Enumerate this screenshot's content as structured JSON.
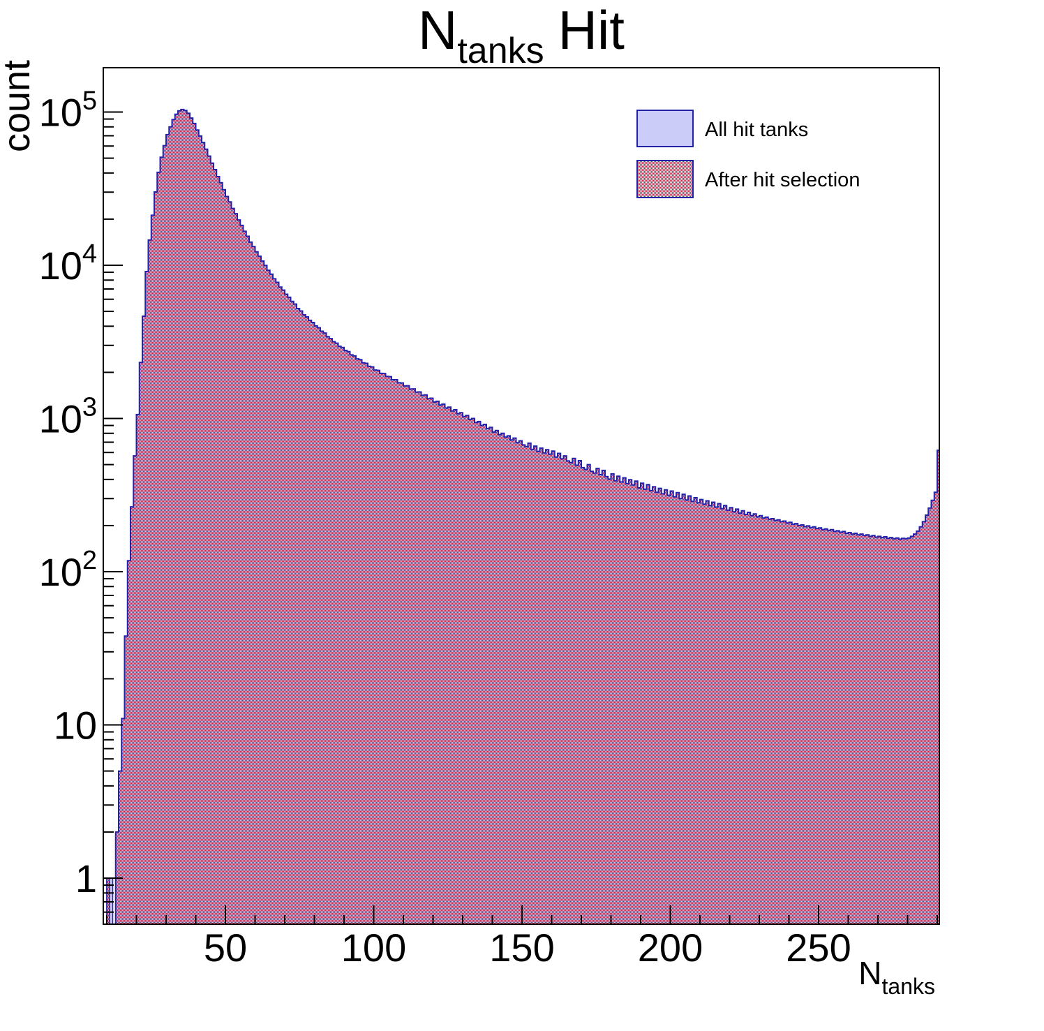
{
  "title": {
    "main": "N",
    "sub": "tanks",
    "rest": "Hit"
  },
  "axes": {
    "y_label": "count",
    "x_label_main": "N",
    "x_label_sub": "tanks"
  },
  "legend": {
    "entries": [
      {
        "label": "All hit tanks",
        "swatch": "lavender-solid"
      },
      {
        "label": "After hit selection",
        "swatch": "red-checker"
      }
    ]
  },
  "colors": {
    "outline_blue": "#2222aa",
    "lavender_fill": "#ccccf9",
    "checker_red": "#c5203f",
    "frame_black": "#000000"
  },
  "chart_data": {
    "type": "bar",
    "title": "N_tanks Hit",
    "xlabel": "N_tanks",
    "ylabel": "count",
    "y_scale": "log",
    "x_range": [
      8.8,
      291
    ],
    "y_range": [
      0.5,
      195000
    ],
    "grid": false,
    "legend_position": "top-right",
    "x_ticks_major": [
      50,
      100,
      150,
      200,
      250
    ],
    "x_ticks_minor_step": 10,
    "y_ticks_major": [
      1,
      10,
      100,
      1000,
      10000,
      100000
    ],
    "y_tick_labels": [
      {
        "value": 1,
        "base": "1",
        "exp": ""
      },
      {
        "value": 10,
        "base": "10",
        "exp": ""
      },
      {
        "value": 100,
        "base": "10",
        "exp": "2"
      },
      {
        "value": 1000,
        "base": "10",
        "exp": "3"
      },
      {
        "value": 10000,
        "base": "10",
        "exp": "4"
      },
      {
        "value": 100000,
        "base": "10",
        "exp": "5"
      }
    ],
    "bin_width": 1,
    "first_bin": 13,
    "counts": [
      2,
      5,
      11,
      38,
      118,
      265,
      570,
      1060,
      2320,
      4650,
      9100,
      14600,
      21200,
      30100,
      40400,
      50700,
      60400,
      71200,
      80100,
      89400,
      96800,
      101900,
      103800,
      102400,
      98100,
      91400,
      84200,
      76400,
      69700,
      63300,
      57200,
      51600,
      46400,
      42100,
      37900,
      34600,
      31100,
      28100,
      25900,
      23500,
      21700,
      19750,
      18200,
      16650,
      15450,
      14150,
      13250,
      12250,
      11450,
      10650,
      9980,
      9270,
      8740,
      8160,
      7730,
      7210,
      6880,
      6470,
      6180,
      5810,
      5580,
      5220,
      5030,
      4750,
      4600,
      4370,
      4230,
      4020,
      3910,
      3710,
      3610,
      3420,
      3320,
      3170,
      3100,
      2960,
      2910,
      2780,
      2730,
      2600,
      2560,
      2450,
      2420,
      2310,
      2290,
      2190,
      2170,
      2070,
      2060,
      1970,
      1965,
      1880,
      1875,
      1790,
      1790,
      1710,
      1705,
      1630,
      1635,
      1555,
      1560,
      1485,
      1490,
      1415,
      1425,
      1345,
      1355,
      1280,
      1295,
      1225,
      1240,
      1170,
      1185,
      1120,
      1140,
      1075,
      1090,
      1030,
      1045,
      985,
      1000,
      940,
      955,
      900,
      915,
      860,
      875,
      815,
      835,
      785,
      800,
      755,
      770,
      725,
      745,
      695,
      715,
      672,
      655,
      690,
      628,
      660,
      610,
      640,
      596,
      625,
      585,
      612,
      560,
      592,
      545,
      570,
      528,
      515,
      548,
      495,
      530,
      478,
      465,
      500,
      452,
      440,
      472,
      430,
      458,
      418,
      402,
      435,
      392,
      420,
      385,
      410,
      376,
      398,
      368,
      390,
      352,
      378,
      345,
      370,
      338,
      358,
      330,
      350,
      322,
      342,
      315,
      336,
      308,
      328,
      300,
      320,
      294,
      312,
      288,
      304,
      282,
      296,
      276,
      290,
      270,
      284,
      264,
      278,
      258,
      270,
      252,
      262,
      246,
      256,
      241,
      250,
      236,
      244,
      232,
      238,
      228,
      232,
      224,
      227,
      220,
      222,
      216,
      218,
      212,
      214,
      208,
      210,
      204,
      206,
      200,
      202,
      197,
      199,
      194,
      196,
      191,
      193,
      188,
      190,
      186,
      188,
      183,
      185,
      181,
      183,
      178,
      180,
      176,
      178,
      174,
      176,
      172,
      174,
      170,
      172,
      168,
      170,
      167,
      169,
      165,
      167,
      164,
      166,
      163,
      165,
      164,
      166,
      170,
      176,
      184,
      196,
      212,
      234,
      260,
      292,
      330,
      620
    ],
    "isolated_low_bins": [
      {
        "n": 10,
        "count": 1,
        "series": "both"
      },
      {
        "n": 11,
        "count": 1,
        "series": "all"
      }
    ],
    "series": [
      {
        "name": "All hit tanks"
      },
      {
        "name": "After hit selection"
      }
    ]
  }
}
